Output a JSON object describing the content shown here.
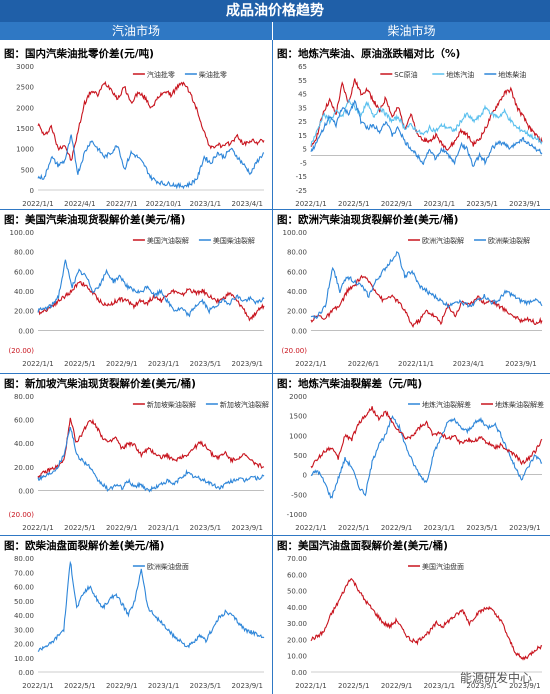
{
  "header": {
    "title": "成品油价格趋势",
    "left_column": "汽油市场",
    "right_column": "柴油市场"
  },
  "watermark": "能源研发中心",
  "colors": {
    "red": "#c8141e",
    "blue": "#2e86d9",
    "lightblue": "#5bc0ee"
  },
  "chart_data": [
    {
      "id": "c1",
      "type": "line",
      "title": "图：国内汽柴油批零价差(元/吨)",
      "ylim": [
        0,
        3000
      ],
      "yticks": [
        "0",
        "500",
        "1000",
        "1500",
        "2000",
        "2500",
        "3000"
      ],
      "xticks": [
        "2022/1/1",
        "2022/4/1",
        "2022/7/1",
        "2022/10/1",
        "2023/1/1",
        "2023/4/1"
      ],
      "series": [
        {
          "name": "汽油批零",
          "color": "#c8141e",
          "values": [
            1600,
            1300,
            1550,
            1000,
            1100,
            700,
            1400,
            2100,
            2400,
            2300,
            2600,
            2450,
            2200,
            2500,
            2100,
            2350,
            2250,
            2000,
            2200,
            2400,
            2300,
            2500,
            2600,
            2300,
            1900,
            1400,
            1000,
            1100,
            1050,
            1150,
            1300,
            1100,
            1200,
            1150,
            1200
          ]
        },
        {
          "name": "柴油批零",
          "color": "#2e86d9",
          "values": [
            300,
            300,
            800,
            600,
            700,
            1300,
            400,
            900,
            1200,
            1000,
            800,
            900,
            1100,
            500,
            900,
            800,
            600,
            300,
            200,
            150,
            150,
            100,
            100,
            150,
            300,
            800,
            650,
            900,
            800,
            1000,
            800,
            600,
            400,
            700,
            900
          ]
        }
      ]
    },
    {
      "id": "c2",
      "type": "line",
      "title": "图：地炼汽柴油、原油涨跌幅对比（%)",
      "ylim": [
        -25,
        65
      ],
      "yticks": [
        "-25",
        "-15",
        "-5",
        "5",
        "15",
        "25",
        "35",
        "45",
        "55",
        "65"
      ],
      "xticks": [
        "2022/1/1",
        "2022/5/1",
        "2022/9/1",
        "2023/1/1",
        "2023/5/1",
        "2023/9/1"
      ],
      "series": [
        {
          "name": "SC原油",
          "color": "#c8141e",
          "values": [
            5,
            15,
            32,
            40,
            30,
            52,
            38,
            55,
            45,
            48,
            40,
            32,
            42,
            28,
            35,
            20,
            30,
            15,
            12,
            10,
            15,
            8,
            5,
            10,
            18,
            15,
            8,
            12,
            20,
            30,
            38,
            45,
            48,
            35,
            28,
            20,
            15,
            10
          ]
        },
        {
          "name": "地炼汽油",
          "color": "#5bc0ee",
          "values": [
            8,
            18,
            30,
            25,
            32,
            28,
            40,
            35,
            30,
            38,
            28,
            35,
            30,
            25,
            28,
            20,
            22,
            18,
            15,
            20,
            18,
            22,
            20,
            18,
            25,
            30,
            25,
            28,
            35,
            30,
            28,
            32,
            25,
            20,
            18,
            15,
            12,
            10
          ]
        },
        {
          "name": "地炼柴油",
          "color": "#2e86d9",
          "values": [
            3,
            10,
            20,
            28,
            22,
            35,
            30,
            40,
            25,
            20,
            22,
            18,
            25,
            15,
            20,
            10,
            5,
            0,
            -5,
            5,
            -3,
            5,
            0,
            -5,
            8,
            5,
            -8,
            0,
            -5,
            5,
            10,
            8,
            5,
            10,
            12,
            8,
            5,
            2
          ]
        }
      ]
    },
    {
      "id": "c3",
      "type": "line",
      "title": "图：美国汽柴油现货裂解价差(美元/桶)",
      "ylim": [
        -20,
        100
      ],
      "yticks": [
        "(20.00)",
        "0.00",
        "20.00",
        "40.00",
        "60.00",
        "80.00",
        "100.00"
      ],
      "xticks": [
        "2022/1/1",
        "2022/5/1",
        "2022/9/1",
        "2023/1/1",
        "2023/5/1",
        "2023/9/1"
      ],
      "series": [
        {
          "name": "美国汽油裂解",
          "color": "#c8141e",
          "values": [
            18,
            20,
            25,
            30,
            35,
            40,
            50,
            45,
            38,
            30,
            25,
            28,
            32,
            30,
            25,
            30,
            28,
            35,
            30,
            38,
            40,
            35,
            42,
            38,
            40,
            35,
            30,
            32,
            38,
            30,
            22,
            10,
            20,
            25
          ]
        },
        {
          "name": "美国柴油裂解",
          "color": "#2e86d9",
          "values": [
            20,
            22,
            25,
            35,
            70,
            45,
            60,
            55,
            40,
            45,
            60,
            50,
            55,
            45,
            40,
            38,
            45,
            35,
            40,
            28,
            20,
            22,
            15,
            25,
            30,
            20,
            25,
            30,
            28,
            35,
            30,
            32,
            28,
            32
          ]
        }
      ]
    },
    {
      "id": "c4",
      "type": "line",
      "title": "图：欧洲汽柴油现货裂解价差(美元/桶)",
      "ylim": [
        -20,
        100
      ],
      "yticks": [
        "(20.00)",
        "0.00",
        "20.00",
        "40.00",
        "60.00",
        "80.00",
        "100.00"
      ],
      "xticks": [
        "2022/1/1",
        "2022/6/1",
        "2022/11/1",
        "2023/4/1",
        "2023/9/1"
      ],
      "series": [
        {
          "name": "欧洲汽油裂解",
          "color": "#c8141e",
          "values": [
            10,
            15,
            12,
            20,
            25,
            40,
            45,
            55,
            50,
            40,
            30,
            35,
            30,
            20,
            5,
            10,
            20,
            15,
            8,
            25,
            15,
            30,
            25,
            35,
            28,
            30,
            25,
            20,
            15,
            10,
            12,
            8,
            10
          ]
        },
        {
          "name": "欧洲柴油裂解",
          "color": "#2e86d9",
          "values": [
            12,
            15,
            25,
            65,
            40,
            55,
            50,
            45,
            35,
            50,
            60,
            70,
            80,
            55,
            60,
            45,
            40,
            35,
            30,
            25,
            30,
            28,
            25,
            30,
            35,
            28,
            30,
            40,
            35,
            30,
            28,
            32,
            25
          ]
        }
      ]
    },
    {
      "id": "c5",
      "type": "line",
      "title": "图：新加坡汽柴油现货裂解价差(美元/桶)",
      "ylim": [
        -20,
        80
      ],
      "yticks": [
        "(20.00)",
        "0.00",
        "20.00",
        "40.00",
        "60.00",
        "80.00"
      ],
      "xticks": [
        "2022/1/1",
        "2022/5/1",
        "2022/9/1",
        "2023/1/1",
        "2023/5/1",
        "2023/9/1"
      ],
      "series": [
        {
          "name": "新加坡柴油裂解",
          "color": "#c8141e",
          "values": [
            12,
            15,
            18,
            20,
            25,
            60,
            40,
            50,
            60,
            55,
            45,
            40,
            45,
            35,
            40,
            38,
            30,
            35,
            32,
            28,
            30,
            25,
            28,
            30,
            35,
            40,
            38,
            30,
            28,
            32,
            25,
            28,
            30,
            25,
            22,
            20
          ]
        },
        {
          "name": "新加坡汽油裂解",
          "color": "#2e86d9",
          "values": [
            10,
            12,
            15,
            20,
            30,
            55,
            30,
            25,
            20,
            10,
            5,
            0,
            5,
            2,
            8,
            3,
            5,
            0,
            2,
            5,
            8,
            5,
            10,
            15,
            12,
            10,
            8,
            5,
            2,
            5,
            8,
            10,
            8,
            12,
            10,
            12
          ]
        }
      ]
    },
    {
      "id": "c6",
      "type": "line",
      "title": "图：地炼汽柴油裂解差（元/吨)",
      "ylim": [
        -1000,
        2000
      ],
      "yticks": [
        "-1000",
        "-500",
        "0",
        "500",
        "1000",
        "1500",
        "2000"
      ],
      "xticks": [
        "2022/1/1",
        "2022/5/1",
        "2022/9/1",
        "2023/1/1",
        "2023/5/1",
        "2023/9/1"
      ],
      "series": [
        {
          "name": "地炼汽油裂解差",
          "color": "#2e86d9",
          "values": [
            0,
            100,
            -200,
            -600,
            -100,
            400,
            200,
            -300,
            -500,
            300,
            800,
            1000,
            1500,
            1200,
            700,
            300,
            0,
            -200,
            500,
            900,
            1300,
            1400,
            1200,
            1100,
            1300,
            1400,
            1200,
            1300,
            1000,
            600,
            200,
            -100,
            200,
            500,
            300
          ]
        },
        {
          "name": "地炼柴油裂解差",
          "color": "#c8141e",
          "values": [
            200,
            400,
            600,
            700,
            400,
            1000,
            900,
            1300,
            1500,
            1700,
            1400,
            1600,
            1300,
            1100,
            900,
            1000,
            1200,
            1300,
            1000,
            1100,
            900,
            1000,
            800,
            900,
            850,
            950,
            800,
            700,
            750,
            600,
            500,
            300,
            400,
            600,
            900
          ]
        }
      ]
    },
    {
      "id": "c7",
      "type": "line",
      "title": "图：欧柴油盘面裂解价差(美元/桶)",
      "ylim": [
        0,
        80
      ],
      "yticks": [
        "0.00",
        "10.00",
        "20.00",
        "30.00",
        "40.00",
        "50.00",
        "60.00",
        "70.00",
        "80.00"
      ],
      "xticks": [
        "2022/1/1",
        "2022/5/1",
        "2022/9/1",
        "2023/1/1",
        "2023/5/1",
        "2023/9/1"
      ],
      "series": [
        {
          "name": "欧洲柴油盘面",
          "color": "#2e86d9",
          "values": [
            15,
            18,
            20,
            25,
            30,
            78,
            45,
            55,
            60,
            52,
            45,
            50,
            55,
            48,
            40,
            50,
            73,
            45,
            40,
            35,
            30,
            25,
            22,
            18,
            20,
            25,
            22,
            30,
            38,
            42,
            40,
            35,
            30,
            28,
            26,
            24
          ]
        }
      ]
    },
    {
      "id": "c8",
      "type": "line",
      "title": "图：美国汽油盘面裂解价差(美元/桶)",
      "ylim": [
        0,
        70
      ],
      "yticks": [
        "0.00",
        "10.00",
        "20.00",
        "30.00",
        "40.00",
        "50.00",
        "60.00",
        "70.00"
      ],
      "xticks": [
        "2022/1/1",
        "2022/5/1",
        "2022/9/1",
        "2023/1/1",
        "2023/5/1",
        "2023/9/1"
      ],
      "series": [
        {
          "name": "美国汽油盘面",
          "color": "#c8141e",
          "values": [
            20,
            22,
            25,
            35,
            42,
            50,
            58,
            52,
            45,
            40,
            35,
            30,
            28,
            32,
            25,
            20,
            18,
            22,
            25,
            30,
            28,
            32,
            35,
            38,
            30,
            35,
            38,
            40,
            35,
            30,
            20,
            12,
            8,
            10,
            14,
            16
          ]
        }
      ]
    }
  ]
}
